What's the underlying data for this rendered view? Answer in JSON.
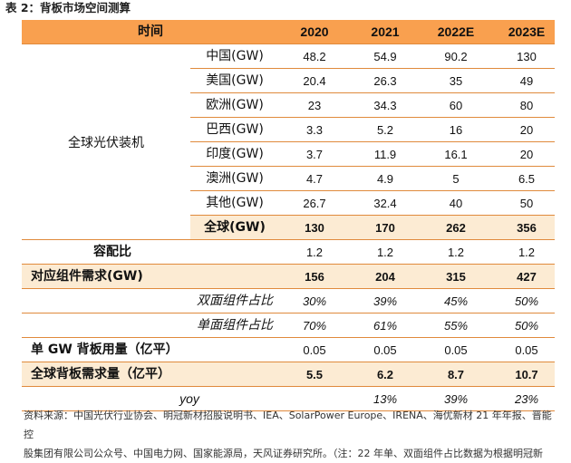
{
  "caption": "表 2：背板市场空间测算",
  "header": {
    "label": "时间",
    "years": [
      "2020",
      "2021",
      "2022E",
      "2023E"
    ]
  },
  "group_label": "全球光伏装机",
  "regions": [
    {
      "name": "中国(GW)",
      "values": [
        "48.2",
        "54.9",
        "90.2",
        "130"
      ]
    },
    {
      "name": "美国(GW)",
      "values": [
        "20.4",
        "26.3",
        "35",
        "49"
      ]
    },
    {
      "name": "欧洲(GW)",
      "values": [
        "23",
        "34.3",
        "60",
        "80"
      ]
    },
    {
      "name": "巴西(GW)",
      "values": [
        "3.3",
        "5.2",
        "16",
        "20"
      ]
    },
    {
      "name": "印度(GW)",
      "values": [
        "3.7",
        "11.9",
        "16.1",
        "20"
      ]
    },
    {
      "name": "澳洲(GW)",
      "values": [
        "4.7",
        "4.9",
        "5",
        "6.5"
      ]
    },
    {
      "name": "其他(GW)",
      "values": [
        "26.7",
        "32.4",
        "40",
        "50"
      ]
    }
  ],
  "global_total": {
    "name": "全球(GW)",
    "values": [
      "130",
      "170",
      "262",
      "356"
    ]
  },
  "capacity_ratio": {
    "name": "容配比",
    "values": [
      "1.2",
      "1.2",
      "1.2",
      "1.2"
    ]
  },
  "module_demand": {
    "name": "对应组件需求(GW)",
    "values": [
      "156",
      "204",
      "315",
      "427"
    ]
  },
  "bifacial_share": {
    "name": "双面组件占比",
    "values": [
      "30%",
      "39%",
      "45%",
      "50%"
    ]
  },
  "monofacial_share": {
    "name": "单面组件占比",
    "values": [
      "70%",
      "61%",
      "55%",
      "50%"
    ]
  },
  "backsheet_per_gw": {
    "name": "单 GW 背板用量（亿平）",
    "values": [
      "0.05",
      "0.05",
      "0.05",
      "0.05"
    ]
  },
  "backsheet_demand": {
    "name": "全球背板需求量（亿平）",
    "values": [
      "5.5",
      "6.2",
      "8.7",
      "10.7"
    ]
  },
  "yoy": {
    "name": "yoy",
    "values": [
      "",
      "13%",
      "39%",
      "23%"
    ]
  },
  "source_line1": "资料来源：中国光伏行业协会、明冠新材招股说明书、IEA、SolarPower Europe、IRENA、海优新材 21 年年报、晋能控",
  "source_line2": "股集团有限公司公众号、中国电力网、国家能源局，天风证券研究所。（注：22 年单、双面组件占比数据为根据明冠新"
}
